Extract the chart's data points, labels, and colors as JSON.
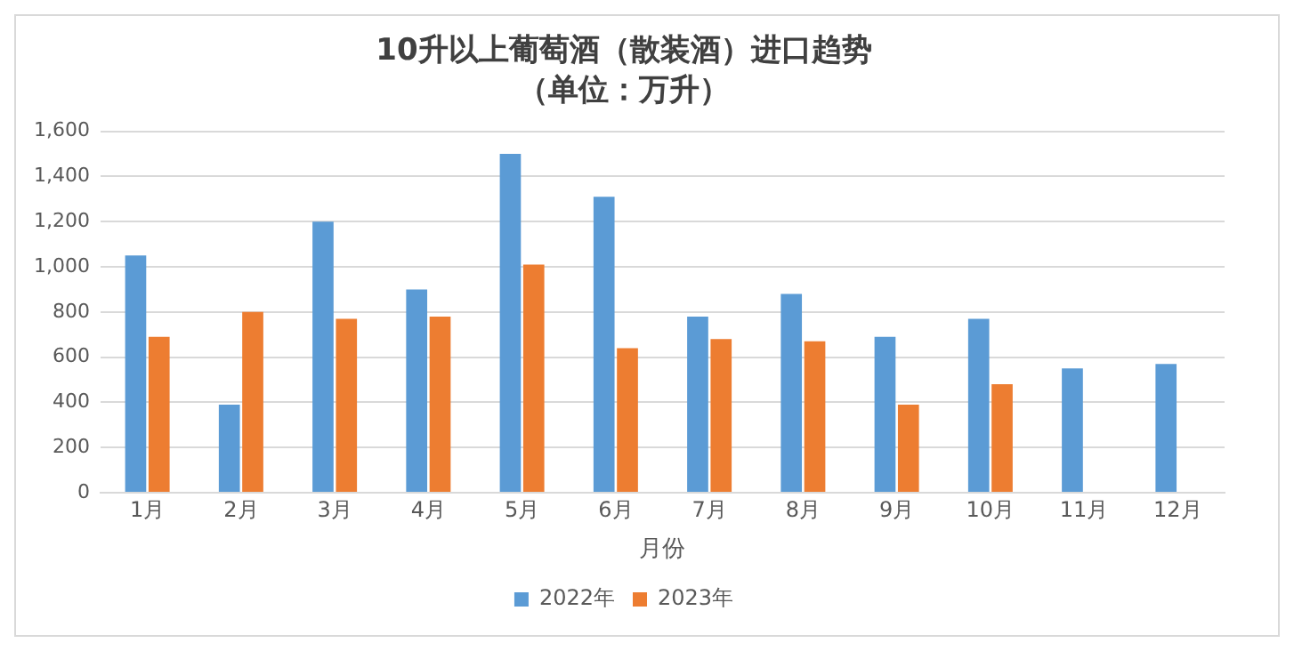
{
  "chart_data": {
    "type": "bar",
    "title": "10升以上葡萄酒（散装酒）进口趋势",
    "subtitle": "（单位：万升）",
    "xlabel": "月份",
    "categories": [
      "1月",
      "2月",
      "3月",
      "4月",
      "5月",
      "6月",
      "7月",
      "8月",
      "9月",
      "10月",
      "11月",
      "12月"
    ],
    "series": [
      {
        "name": "2022年",
        "color": "#5b9bd5",
        "values": [
          1050,
          390,
          1200,
          900,
          1500,
          1310,
          780,
          880,
          690,
          770,
          550,
          570
        ]
      },
      {
        "name": "2023年",
        "color": "#ed7d31",
        "values": [
          690,
          800,
          770,
          780,
          1010,
          640,
          680,
          670,
          390,
          480,
          null,
          null
        ]
      }
    ],
    "ylim": [
      0,
      1600
    ],
    "yticks": [
      {
        "value": 0,
        "label": "0"
      },
      {
        "value": 200,
        "label": "200"
      },
      {
        "value": 400,
        "label": "400"
      },
      {
        "value": 600,
        "label": "600"
      },
      {
        "value": 800,
        "label": "800"
      },
      {
        "value": 1000,
        "label": "1,000"
      },
      {
        "value": 1200,
        "label": "1,200"
      },
      {
        "value": 1400,
        "label": "1,400"
      },
      {
        "value": 1600,
        "label": "1,600"
      }
    ],
    "grid": "y",
    "legend": "bottom"
  }
}
